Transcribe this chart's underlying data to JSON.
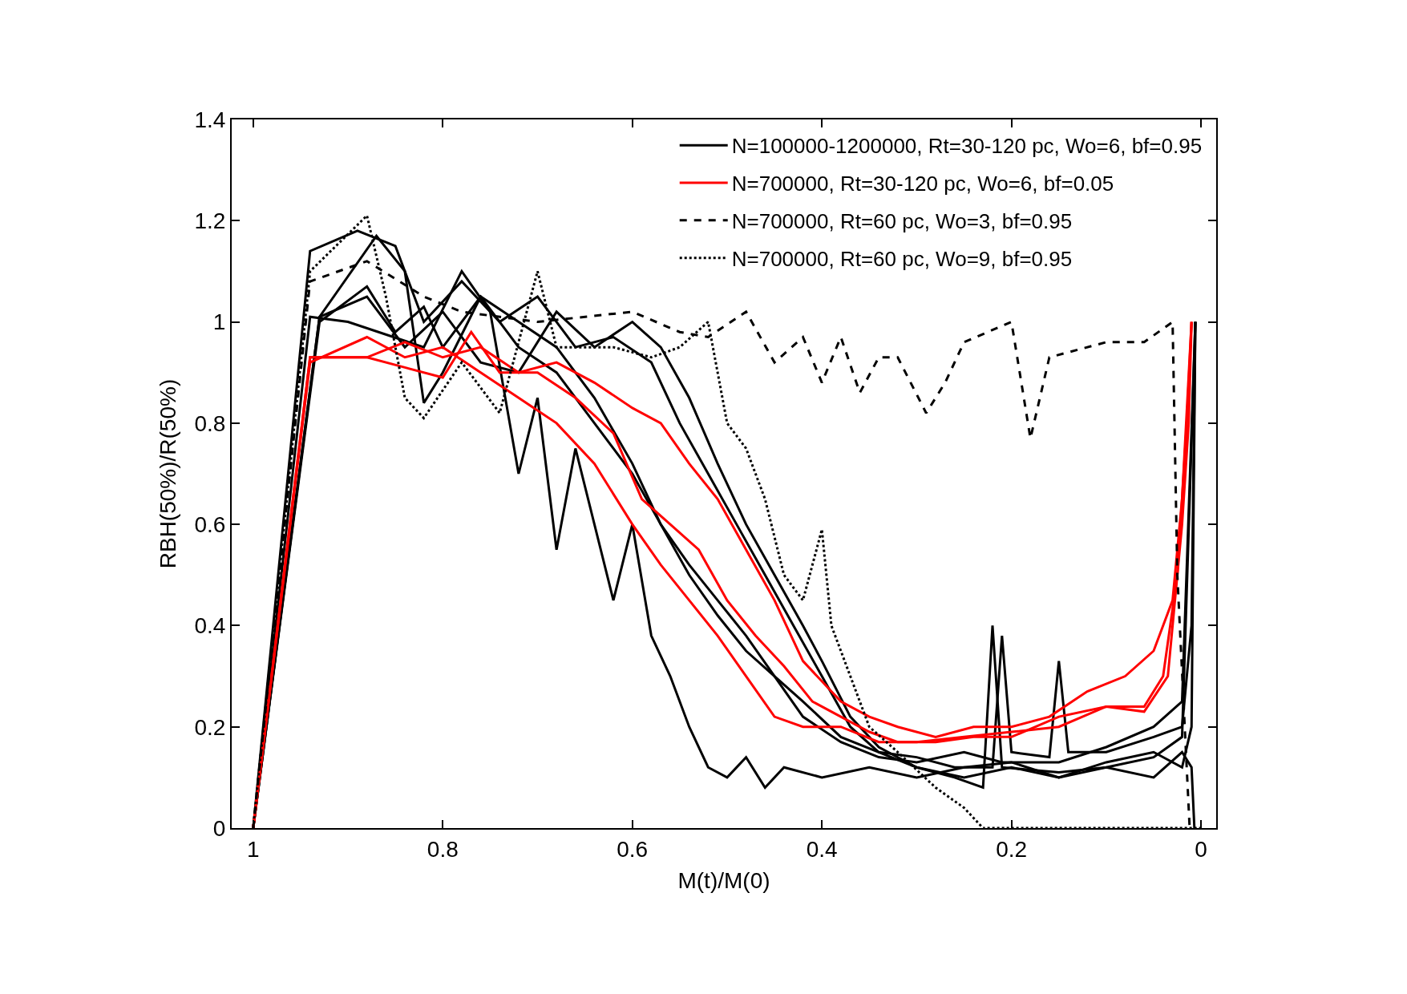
{
  "chart_data": {
    "type": "line",
    "xlabel": "M(t)/M(0)",
    "ylabel": "RBH(50%)/R(50%)",
    "xlim": [
      1.0227,
      -0.016
    ],
    "xticks": [
      1,
      0.8,
      0.6,
      0.4,
      0.2,
      0
    ],
    "ylim": [
      0,
      1.4
    ],
    "yticks": [
      0,
      0.2,
      0.4,
      0.6,
      0.8,
      1,
      1.2,
      1.4
    ],
    "legend": "top right",
    "marker": "none",
    "series": [
      {
        "name": "N=100000-1200000, Rt=30-120 pc, Wo=6, bf=0.95",
        "color": "#000000",
        "line_style": "solid",
        "x": [
          1,
          0.94,
          0.9,
          0.82,
          0.78,
          0.75,
          0.72,
          0.7,
          0.68,
          0.66,
          0.64,
          0.62,
          0.6,
          0.58,
          0.56,
          0.54,
          0.52,
          0.5,
          0.48,
          0.46,
          0.44,
          0.4,
          0.35,
          0.3,
          0.25,
          0.2,
          0.15,
          0.1,
          0.05,
          0.02,
          0.01,
          0.006
        ],
        "values": [
          0,
          1.01,
          1.0,
          0.95,
          1.1,
          1.02,
          0.7,
          0.85,
          0.55,
          0.75,
          0.6,
          0.45,
          0.6,
          0.38,
          0.3,
          0.2,
          0.12,
          0.1,
          0.14,
          0.08,
          0.12,
          0.1,
          0.12,
          0.1,
          0.12,
          0.13,
          0.1,
          0.13,
          0.15,
          0.12,
          0.2,
          1.0
        ]
      },
      {
        "color": "#000000",
        "line_style": "solid",
        "x": [
          1,
          0.94,
          0.89,
          0.85,
          0.82,
          0.78,
          0.74,
          0.7,
          0.66,
          0.62,
          0.58,
          0.55,
          0.52,
          0.49,
          0.46,
          0.43,
          0.4,
          0.37,
          0.34,
          0.3,
          0.26,
          0.22,
          0.21,
          0.2,
          0.16,
          0.15,
          0.14,
          0.1,
          0.05,
          0.02,
          0.01,
          0.006
        ],
        "values": [
          0,
          1.14,
          1.18,
          1.15,
          1.0,
          1.08,
          1.0,
          1.05,
          0.95,
          0.97,
          0.92,
          0.8,
          0.7,
          0.6,
          0.5,
          0.4,
          0.3,
          0.2,
          0.15,
          0.14,
          0.12,
          0.12,
          0.38,
          0.15,
          0.14,
          0.33,
          0.15,
          0.15,
          0.18,
          0.2,
          0.4,
          1.0
        ]
      },
      {
        "color": "#000000",
        "line_style": "solid",
        "x": [
          1,
          0.93,
          0.88,
          0.85,
          0.82,
          0.8,
          0.76,
          0.72,
          0.68,
          0.64,
          0.6,
          0.57,
          0.54,
          0.51,
          0.48,
          0.45,
          0.42,
          0.38,
          0.34,
          0.3,
          0.25,
          0.2,
          0.15,
          0.1,
          0.05,
          0.02,
          0.01,
          0.007
        ],
        "values": [
          0,
          1.0,
          1.07,
          0.98,
          1.03,
          0.95,
          1.05,
          0.95,
          0.9,
          0.8,
          0.7,
          0.6,
          0.5,
          0.42,
          0.35,
          0.3,
          0.25,
          0.18,
          0.15,
          0.12,
          0.1,
          0.12,
          0.1,
          0.12,
          0.1,
          0.15,
          0.12,
          0.0
        ]
      },
      {
        "color": "#000000",
        "line_style": "solid",
        "x": [
          1,
          0.93,
          0.87,
          0.84,
          0.82,
          0.8,
          0.76,
          0.72,
          0.68,
          0.64,
          0.6,
          0.57,
          0.54,
          0.51,
          0.48,
          0.45,
          0.42,
          0.38,
          0.34,
          0.3,
          0.25,
          0.21,
          0.15,
          0.1,
          0.05,
          0.02,
          0.006
        ],
        "values": [
          0,
          1.01,
          1.17,
          1.1,
          0.84,
          0.9,
          1.05,
          1.0,
          0.95,
          0.85,
          0.72,
          0.6,
          0.52,
          0.45,
          0.38,
          0.3,
          0.22,
          0.17,
          0.14,
          0.13,
          0.15,
          0.13,
          0.13,
          0.16,
          0.2,
          0.25,
          1.0
        ]
      },
      {
        "color": "#000000",
        "line_style": "solid",
        "x": [
          1,
          0.93,
          0.88,
          0.84,
          0.8,
          0.76,
          0.72,
          0.68,
          0.64,
          0.6,
          0.57,
          0.54,
          0.51,
          0.48,
          0.45,
          0.42,
          0.4,
          0.37,
          0.34,
          0.3,
          0.26,
          0.23,
          0.22,
          0.21,
          0.15,
          0.1,
          0.05,
          0.02,
          0.006
        ],
        "values": [
          0,
          1.01,
          1.05,
          0.95,
          1.02,
          0.92,
          0.9,
          1.02,
          0.95,
          1.0,
          0.95,
          0.85,
          0.72,
          0.6,
          0.5,
          0.4,
          0.33,
          0.22,
          0.16,
          0.12,
          0.1,
          0.08,
          0.4,
          0.12,
          0.11,
          0.12,
          0.14,
          0.18,
          1.0
        ]
      },
      {
        "name": "N=700000, Rt=30-120 pc, Wo=6, bf=0.05",
        "color": "#ff0000",
        "line_style": "solid",
        "x": [
          1,
          0.94,
          0.88,
          0.84,
          0.8,
          0.76,
          0.72,
          0.68,
          0.64,
          0.6,
          0.57,
          0.54,
          0.51,
          0.48,
          0.45,
          0.42,
          0.38,
          0.34,
          0.3,
          0.25,
          0.2,
          0.15,
          0.1,
          0.06,
          0.04,
          0.025,
          0.015,
          0.01
        ],
        "values": [
          0,
          0.92,
          0.97,
          0.93,
          0.95,
          0.9,
          0.85,
          0.8,
          0.72,
          0.6,
          0.52,
          0.45,
          0.38,
          0.3,
          0.22,
          0.2,
          0.2,
          0.17,
          0.17,
          0.18,
          0.19,
          0.2,
          0.24,
          0.24,
          0.3,
          0.5,
          0.8,
          1.0
        ]
      },
      {
        "color": "#ff0000",
        "line_style": "solid",
        "x": [
          1,
          0.94,
          0.88,
          0.84,
          0.8,
          0.77,
          0.74,
          0.7,
          0.66,
          0.62,
          0.59,
          0.56,
          0.53,
          0.5,
          0.47,
          0.44,
          0.41,
          0.38,
          0.35,
          0.32,
          0.28,
          0.24,
          0.2,
          0.15,
          0.1,
          0.06,
          0.035,
          0.02,
          0.013,
          0.01
        ],
        "values": [
          0,
          0.93,
          0.93,
          0.91,
          0.89,
          0.98,
          0.9,
          0.9,
          0.85,
          0.78,
          0.65,
          0.6,
          0.55,
          0.45,
          0.38,
          0.32,
          0.25,
          0.22,
          0.19,
          0.17,
          0.17,
          0.18,
          0.18,
          0.22,
          0.24,
          0.23,
          0.3,
          0.6,
          0.8,
          1.0
        ]
      },
      {
        "color": "#ff0000",
        "line_style": "solid",
        "x": [
          1,
          0.94,
          0.88,
          0.84,
          0.8,
          0.76,
          0.72,
          0.68,
          0.64,
          0.6,
          0.57,
          0.54,
          0.51,
          0.48,
          0.45,
          0.42,
          0.38,
          0.35,
          0.32,
          0.28,
          0.24,
          0.2,
          0.16,
          0.12,
          0.08,
          0.05,
          0.03,
          0.02,
          0.01
        ],
        "values": [
          0,
          0.93,
          0.93,
          0.96,
          0.93,
          0.95,
          0.9,
          0.92,
          0.88,
          0.83,
          0.8,
          0.72,
          0.65,
          0.55,
          0.45,
          0.33,
          0.25,
          0.22,
          0.2,
          0.18,
          0.2,
          0.2,
          0.22,
          0.27,
          0.3,
          0.35,
          0.45,
          0.65,
          1.0
        ]
      },
      {
        "name": "N=700000, Rt=60 pc, Wo=3, bf=0.95",
        "color": "#000000",
        "line_style": "dashed",
        "x": [
          1,
          0.94,
          0.88,
          0.82,
          0.78,
          0.7,
          0.6,
          0.55,
          0.52,
          0.48,
          0.45,
          0.42,
          0.4,
          0.38,
          0.36,
          0.34,
          0.32,
          0.29,
          0.27,
          0.25,
          0.2,
          0.18,
          0.16,
          0.1,
          0.06,
          0.03,
          0.025,
          0.012
        ],
        "values": [
          0,
          1.08,
          1.12,
          1.05,
          1.02,
          1.0,
          1.02,
          0.98,
          0.97,
          1.02,
          0.92,
          0.97,
          0.88,
          0.97,
          0.86,
          0.93,
          0.93,
          0.82,
          0.88,
          0.96,
          1.0,
          0.77,
          0.93,
          0.96,
          0.96,
          1.0,
          0.5,
          0.0
        ]
      },
      {
        "name": "N=700000, Rt=60 pc, Wo=9, bf=0.95",
        "color": "#000000",
        "line_style": "dotted",
        "x": [
          1,
          0.94,
          0.88,
          0.86,
          0.84,
          0.82,
          0.78,
          0.74,
          0.7,
          0.68,
          0.62,
          0.58,
          0.55,
          0.52,
          0.5,
          0.48,
          0.46,
          0.44,
          0.42,
          0.4,
          0.39,
          0.37,
          0.35,
          0.32,
          0.28,
          0.25,
          0.235,
          0.23,
          0.0
        ],
        "values": [
          0,
          1.1,
          1.21,
          1.05,
          0.85,
          0.81,
          0.92,
          0.82,
          1.1,
          0.95,
          0.95,
          0.93,
          0.95,
          1.0,
          0.8,
          0.75,
          0.65,
          0.5,
          0.45,
          0.59,
          0.4,
          0.3,
          0.2,
          0.15,
          0.08,
          0.04,
          0.01,
          0,
          0
        ]
      }
    ]
  }
}
